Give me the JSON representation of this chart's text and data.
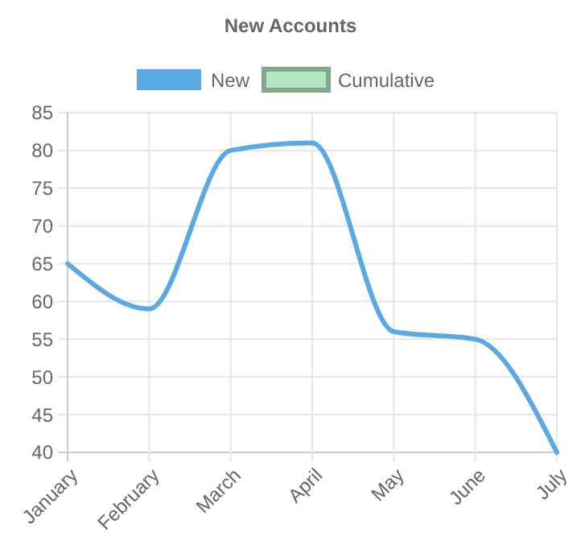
{
  "chart_data": {
    "type": "line",
    "title": "New Accounts",
    "categories": [
      "January",
      "February",
      "March",
      "April",
      "May",
      "June",
      "July"
    ],
    "series": [
      {
        "name": "New",
        "color": "#5aa9e2",
        "values": [
          65,
          59,
          80,
          81,
          56,
          55,
          40
        ]
      },
      {
        "name": "Cumulative",
        "color": "#b3e6c3",
        "values": [
          null,
          null,
          null,
          null,
          null,
          null,
          null
        ]
      }
    ],
    "ylim": [
      40,
      85
    ],
    "yticks": [
      40,
      45,
      50,
      55,
      60,
      65,
      70,
      75,
      80,
      85
    ],
    "grid": true,
    "legend": "top",
    "marker": "none",
    "line_style": "solid"
  }
}
